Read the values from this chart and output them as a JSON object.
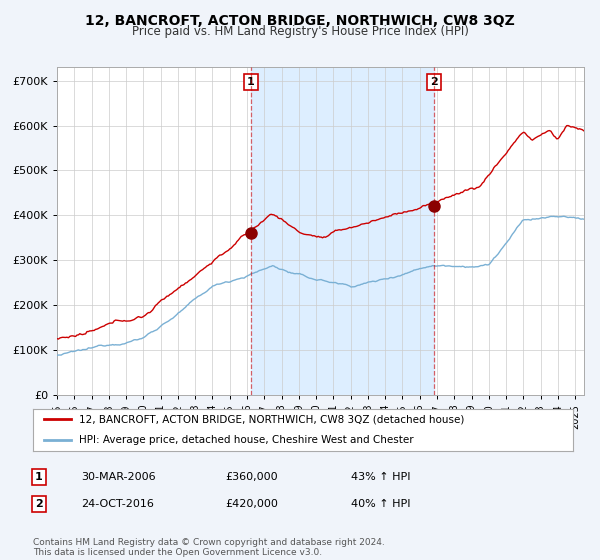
{
  "title": "12, BANCROFT, ACTON BRIDGE, NORTHWICH, CW8 3QZ",
  "subtitle": "Price paid vs. HM Land Registry's House Price Index (HPI)",
  "ylabel_ticks": [
    "£0",
    "£100K",
    "£200K",
    "£300K",
    "£400K",
    "£500K",
    "£600K",
    "£700K"
  ],
  "ytick_vals": [
    0,
    100000,
    200000,
    300000,
    400000,
    500000,
    600000,
    700000
  ],
  "ylim": [
    0,
    730000
  ],
  "xlim_start": 1995.0,
  "xlim_end": 2025.5,
  "background_color": "#f0f4fa",
  "plot_bg_color": "#ffffff",
  "grid_color": "#cccccc",
  "red_line_color": "#cc0000",
  "blue_line_color": "#7ab0d4",
  "shade_color": "#ddeeff",
  "dashed_line_color": "#cc0000",
  "dashed_line_alpha": 0.6,
  "marker1_date": 2006.23,
  "marker1_value": 360000,
  "marker2_date": 2016.82,
  "marker2_value": 420000,
  "legend_line1": "12, BANCROFT, ACTON BRIDGE, NORTHWICH, CW8 3QZ (detached house)",
  "legend_line2": "HPI: Average price, detached house, Cheshire West and Chester",
  "annotation1_num": "1",
  "annotation1_date": "30-MAR-2006",
  "annotation1_price": "£360,000",
  "annotation1_hpi": "43% ↑ HPI",
  "annotation2_num": "2",
  "annotation2_date": "24-OCT-2016",
  "annotation2_price": "£420,000",
  "annotation2_hpi": "40% ↑ HPI",
  "footer": "Contains HM Land Registry data © Crown copyright and database right 2024.\nThis data is licensed under the Open Government Licence v3.0.",
  "xtick_years": [
    1995,
    1996,
    1997,
    1998,
    1999,
    2000,
    2001,
    2002,
    2003,
    2004,
    2005,
    2006,
    2007,
    2008,
    2009,
    2010,
    2011,
    2012,
    2013,
    2014,
    2015,
    2016,
    2017,
    2018,
    2019,
    2020,
    2021,
    2022,
    2023,
    2024,
    2025
  ]
}
